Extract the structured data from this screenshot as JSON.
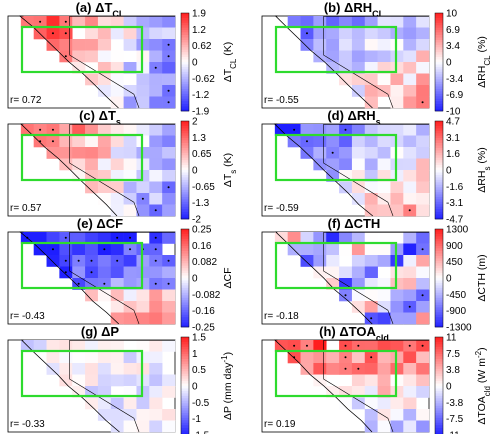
{
  "chart_data": [
    {
      "type": "heatmap",
      "title": "(a) ΔT",
      "title_sub": "CL",
      "cbar_label": "ΔT",
      "cbar_label_sub": "CL",
      "cbar_unit": " (K)",
      "cbar_ticks": [
        "1.9",
        "1.2",
        "0.62",
        "0",
        "-0.62",
        "-1.2",
        "-1.9"
      ],
      "vrange": [
        -1.9,
        1.9
      ],
      "r_text": "r= 0.72",
      "pattern": "warm"
    },
    {
      "type": "heatmap",
      "title": "(b) ΔRH",
      "title_sub": "CL",
      "cbar_label": "ΔRH",
      "cbar_label_sub": "CL",
      "cbar_unit": " (%)",
      "cbar_ticks": [
        "10",
        "6.9",
        "3.4",
        "0",
        "-3.4",
        "-6.9",
        "-10"
      ],
      "vrange": [
        -10,
        10
      ],
      "r_text": "r= -0.55",
      "pattern": "cool"
    },
    {
      "type": "heatmap",
      "title": "(c) ΔT",
      "title_sub": "s",
      "cbar_label": "ΔT",
      "cbar_label_sub": "s",
      "cbar_unit": " (K)",
      "cbar_ticks": [
        "2",
        "1.3",
        "0.65",
        "0",
        "-0.65",
        "-1.3",
        "-2"
      ],
      "vrange": [
        -2,
        2
      ],
      "r_text": "r= 0.57",
      "pattern": "warm"
    },
    {
      "type": "heatmap",
      "title": "(d) ΔRH",
      "title_sub": "s",
      "cbar_label": "ΔRH",
      "cbar_label_sub": "s",
      "cbar_unit": " (%)",
      "cbar_ticks": [
        "4.7",
        "3.1",
        "1.6",
        "0",
        "-1.6",
        "-3.1",
        "-4.7"
      ],
      "vrange": [
        -4.7,
        4.7
      ],
      "r_text": "r= -0.59",
      "pattern": "cool"
    },
    {
      "type": "heatmap",
      "title": "(e) ΔCF",
      "title_sub": "",
      "cbar_label": "ΔCF",
      "cbar_label_sub": "",
      "cbar_unit": "",
      "cbar_ticks": [
        "0.25",
        "0.16",
        "0.082",
        "0",
        "-0.082",
        "-0.16",
        "-0.25"
      ],
      "vrange": [
        -0.25,
        0.25
      ],
      "r_text": "r= -0.43",
      "pattern": "cf"
    },
    {
      "type": "heatmap",
      "title": "(f) ΔCTH",
      "title_sub": "",
      "cbar_label": "ΔCTH",
      "cbar_label_sub": "",
      "cbar_unit": " (m)",
      "cbar_ticks": [
        "1300",
        "900",
        "450",
        "0",
        "-450",
        "-900",
        "-1300"
      ],
      "vrange": [
        -1300,
        1300
      ],
      "r_text": "r= -0.18",
      "pattern": "mixed"
    },
    {
      "type": "heatmap",
      "title": "(g) ΔP",
      "title_sub": "",
      "cbar_label": "ΔP (mm day",
      "cbar_label_sub": "",
      "cbar_label_sup": "-1",
      "cbar_unit": ")",
      "cbar_ticks": [
        "1.5",
        "1",
        "0.5",
        "0",
        "-0.5",
        "-1",
        "-1.5"
      ],
      "vrange": [
        -1.5,
        1.5
      ],
      "r_text": "r= -0.33",
      "pattern": "weak"
    },
    {
      "type": "heatmap",
      "title": "(h) ΔTOA",
      "title_sub": "cld",
      "cbar_label": "ΔTOA",
      "cbar_label_sub": "cld",
      "cbar_unit": " (W m",
      "cbar_label_sup": "-2",
      "cbar_unit_end": ")",
      "cbar_ticks": [
        "11",
        "7.5",
        "3.8",
        "0",
        "-3.8",
        "-7.5",
        "-11"
      ],
      "vrange": [
        -11,
        11
      ],
      "r_text": "r= 0.19",
      "pattern": "toa"
    }
  ]
}
